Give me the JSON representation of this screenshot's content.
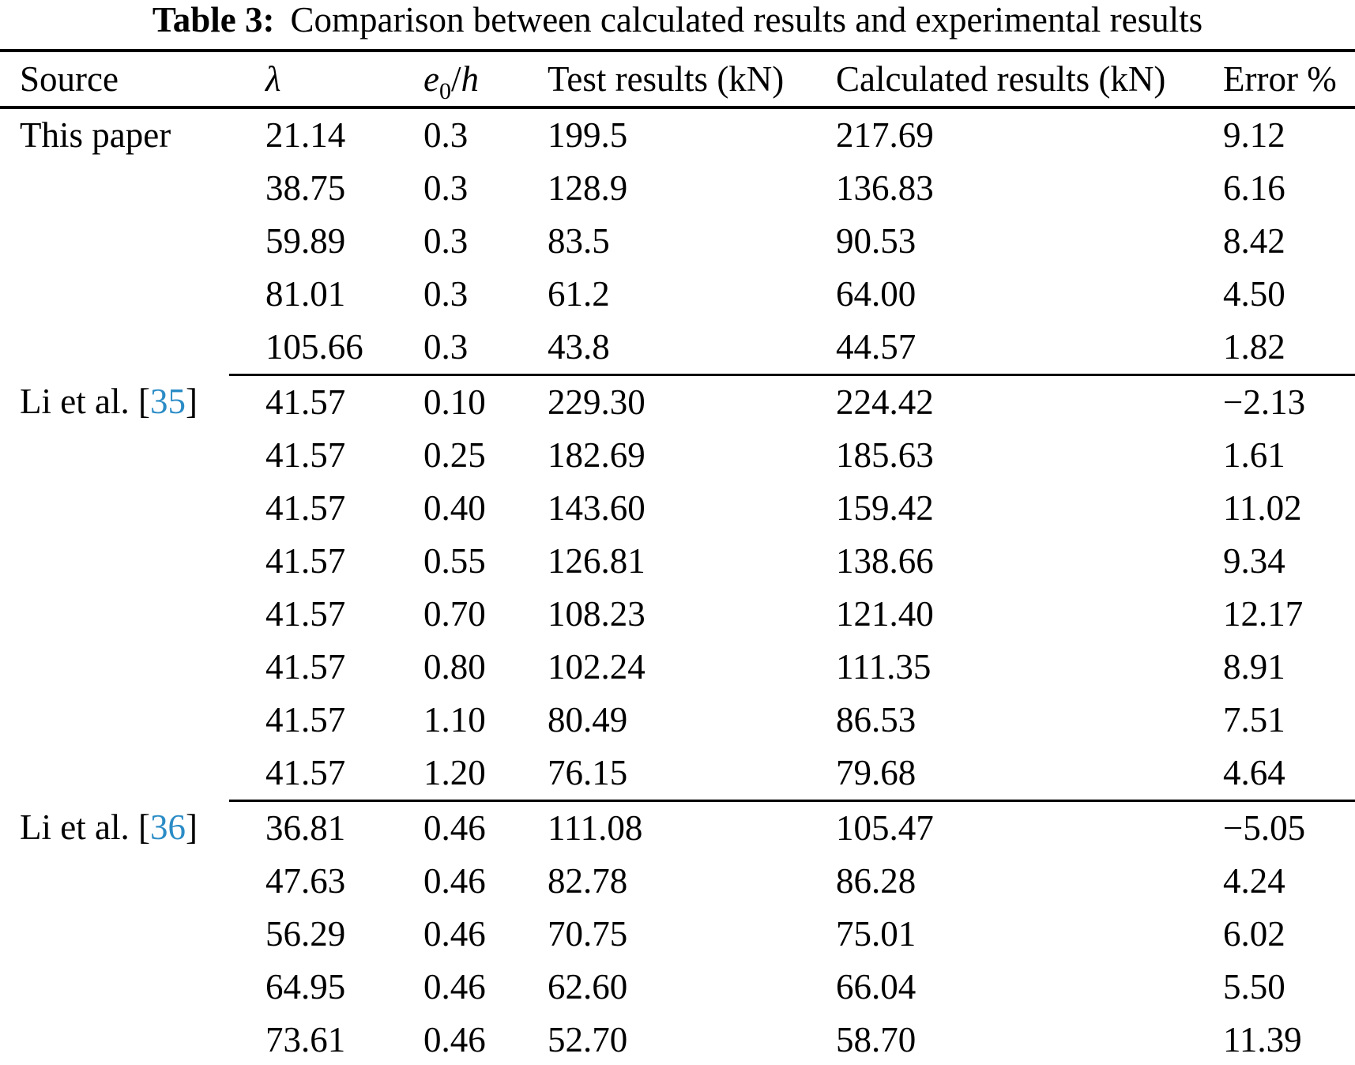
{
  "caption": {
    "label": "Table 3:",
    "text": "Comparison between calculated results and experimental results"
  },
  "colors": {
    "citation_blue": "#2b8cc6",
    "text": "#000000",
    "rule": "#000000"
  },
  "table": {
    "header": {
      "source": "Source",
      "lambda": "λ",
      "e0h": {
        "base": "e",
        "sub": "0",
        "slash": "/",
        "h": "h"
      },
      "test": "Test results (kN)",
      "calculated": "Calculated results (kN)",
      "error": "Error %"
    },
    "groups": [
      {
        "source": {
          "prefix": "This paper",
          "citation": null,
          "suffix": ""
        },
        "rows": [
          [
            "21.14",
            "0.3",
            "199.5",
            "217.69",
            "9.12"
          ],
          [
            "38.75",
            "0.3",
            "128.9",
            "136.83",
            "6.16"
          ],
          [
            "59.89",
            "0.3",
            "83.5",
            "90.53",
            "8.42"
          ],
          [
            "81.01",
            "0.3",
            "61.2",
            "64.00",
            "4.50"
          ],
          [
            "105.66",
            "0.3",
            "43.8",
            "44.57",
            "1.82"
          ]
        ]
      },
      {
        "source": {
          "prefix": "Li et al. [",
          "citation": "35",
          "suffix": "]"
        },
        "rows": [
          [
            "41.57",
            "0.10",
            "229.30",
            "224.42",
            "−2.13"
          ],
          [
            "41.57",
            "0.25",
            "182.69",
            "185.63",
            "1.61"
          ],
          [
            "41.57",
            "0.40",
            "143.60",
            "159.42",
            "11.02"
          ],
          [
            "41.57",
            "0.55",
            "126.81",
            "138.66",
            "9.34"
          ],
          [
            "41.57",
            "0.70",
            "108.23",
            "121.40",
            "12.17"
          ],
          [
            "41.57",
            "0.80",
            "102.24",
            "111.35",
            "8.91"
          ],
          [
            "41.57",
            "1.10",
            "80.49",
            "86.53",
            "7.51"
          ],
          [
            "41.57",
            "1.20",
            "76.15",
            "79.68",
            "4.64"
          ]
        ]
      },
      {
        "source": {
          "prefix": "Li et al. [",
          "citation": "36",
          "suffix": "]"
        },
        "rows": [
          [
            "36.81",
            "0.46",
            "111.08",
            "105.47",
            "−5.05"
          ],
          [
            "47.63",
            "0.46",
            "82.78",
            "86.28",
            "4.24"
          ],
          [
            "56.29",
            "0.46",
            "70.75",
            "75.01",
            "6.02"
          ],
          [
            "64.95",
            "0.46",
            "62.60",
            "66.04",
            "5.50"
          ],
          [
            "73.61",
            "0.46",
            "52.70",
            "58.70",
            "11.39"
          ]
        ]
      }
    ]
  }
}
